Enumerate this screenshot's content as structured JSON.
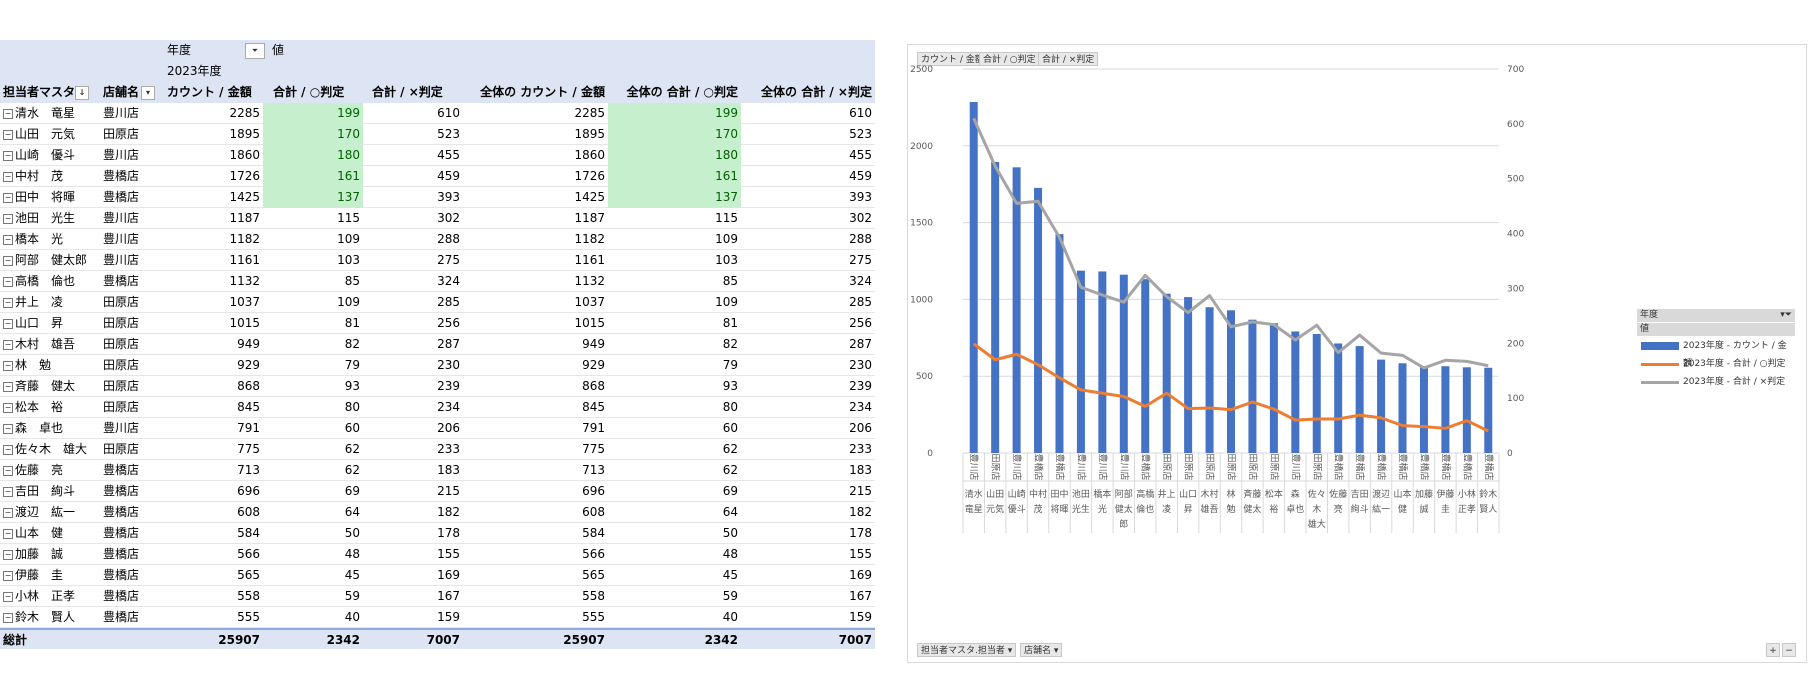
{
  "pivot": {
    "header": {
      "year_field": "年度",
      "values_label": "値",
      "year_value": "2023年度",
      "col_owner": "担当者マスタ",
      "col_owner_sort": "↓",
      "col_store": "店舗名",
      "col_count": "カウント / 金額",
      "col_ok": "合計 / ○判定",
      "col_ng": "合計 / ×判定",
      "col_total_count": "全体の カウント / 金額",
      "col_total_ok": "全体の 合計 / ○判定",
      "col_total_ng": "全体の 合計 / ×判定"
    },
    "rows": [
      {
        "name": "清水　竜星",
        "store": "豊川店",
        "count": 2285,
        "ok": 199,
        "ng": 610,
        "tcount": 2285,
        "tok": 199,
        "tng": 610
      },
      {
        "name": "山田　元気",
        "store": "田原店",
        "count": 1895,
        "ok": 170,
        "ng": 523,
        "tcount": 1895,
        "tok": 170,
        "tng": 523
      },
      {
        "name": "山崎　優斗",
        "store": "豊川店",
        "count": 1860,
        "ok": 180,
        "ng": 455,
        "tcount": 1860,
        "tok": 180,
        "tng": 455
      },
      {
        "name": "中村　茂",
        "store": "豊橋店",
        "count": 1726,
        "ok": 161,
        "ng": 459,
        "tcount": 1726,
        "tok": 161,
        "tng": 459
      },
      {
        "name": "田中　将暉",
        "store": "豊橋店",
        "count": 1425,
        "ok": 137,
        "ng": 393,
        "tcount": 1425,
        "tok": 137,
        "tng": 393
      },
      {
        "name": "池田　光生",
        "store": "豊川店",
        "count": 1187,
        "ok": 115,
        "ng": 302,
        "tcount": 1187,
        "tok": 115,
        "tng": 302
      },
      {
        "name": "橋本　光",
        "store": "豊川店",
        "count": 1182,
        "ok": 109,
        "ng": 288,
        "tcount": 1182,
        "tok": 109,
        "tng": 288
      },
      {
        "name": "阿部　健太郎",
        "store": "豊川店",
        "count": 1161,
        "ok": 103,
        "ng": 275,
        "tcount": 1161,
        "tok": 103,
        "tng": 275
      },
      {
        "name": "高橋　倫也",
        "store": "豊橋店",
        "count": 1132,
        "ok": 85,
        "ng": 324,
        "tcount": 1132,
        "tok": 85,
        "tng": 324
      },
      {
        "name": "井上　凌",
        "store": "田原店",
        "count": 1037,
        "ok": 109,
        "ng": 285,
        "tcount": 1037,
        "tok": 109,
        "tng": 285
      },
      {
        "name": "山口　昇",
        "store": "田原店",
        "count": 1015,
        "ok": 81,
        "ng": 256,
        "tcount": 1015,
        "tok": 81,
        "tng": 256
      },
      {
        "name": "木村　雄吾",
        "store": "田原店",
        "count": 949,
        "ok": 82,
        "ng": 287,
        "tcount": 949,
        "tok": 82,
        "tng": 287
      },
      {
        "name": "林　勉",
        "store": "田原店",
        "count": 929,
        "ok": 79,
        "ng": 230,
        "tcount": 929,
        "tok": 79,
        "tng": 230
      },
      {
        "name": "斉藤　健太",
        "store": "田原店",
        "count": 868,
        "ok": 93,
        "ng": 239,
        "tcount": 868,
        "tok": 93,
        "tng": 239
      },
      {
        "name": "松本　裕",
        "store": "田原店",
        "count": 845,
        "ok": 80,
        "ng": 234,
        "tcount": 845,
        "tok": 80,
        "tng": 234
      },
      {
        "name": "森　卓也",
        "store": "豊川店",
        "count": 791,
        "ok": 60,
        "ng": 206,
        "tcount": 791,
        "tok": 60,
        "tng": 206
      },
      {
        "name": "佐々木　雄大",
        "store": "田原店",
        "count": 775,
        "ok": 62,
        "ng": 233,
        "tcount": 775,
        "tok": 62,
        "tng": 233
      },
      {
        "name": "佐藤　亮",
        "store": "豊橋店",
        "count": 713,
        "ok": 62,
        "ng": 183,
        "tcount": 713,
        "tok": 62,
        "tng": 183
      },
      {
        "name": "吉田　絢斗",
        "store": "豊橋店",
        "count": 696,
        "ok": 69,
        "ng": 215,
        "tcount": 696,
        "tok": 69,
        "tng": 215
      },
      {
        "name": "渡辺　紘一",
        "store": "豊橋店",
        "count": 608,
        "ok": 64,
        "ng": 182,
        "tcount": 608,
        "tok": 64,
        "tng": 182
      },
      {
        "name": "山本　健",
        "store": "豊橋店",
        "count": 584,
        "ok": 50,
        "ng": 178,
        "tcount": 584,
        "tok": 50,
        "tng": 178
      },
      {
        "name": "加藤　誠",
        "store": "豊橋店",
        "count": 566,
        "ok": 48,
        "ng": 155,
        "tcount": 566,
        "tok": 48,
        "tng": 155
      },
      {
        "name": "伊藤　圭",
        "store": "豊橋店",
        "count": 565,
        "ok": 45,
        "ng": 169,
        "tcount": 565,
        "tok": 45,
        "tng": 169
      },
      {
        "name": "小林　正孝",
        "store": "豊橋店",
        "count": 558,
        "ok": 59,
        "ng": 167,
        "tcount": 558,
        "tok": 59,
        "tng": 167
      },
      {
        "name": "鈴木　賢人",
        "store": "豊橋店",
        "count": 555,
        "ok": 40,
        "ng": 159,
        "tcount": 555,
        "tok": 40,
        "tng": 159
      }
    ],
    "total": {
      "label": "総計",
      "count": 25907,
      "ok": 2342,
      "ng": 7007,
      "tcount": 25907,
      "tok": 2342,
      "tng": 7007
    },
    "highlight_color": "#c6efce",
    "highlight_text_color": "#006100",
    "highlight_top_n": 5
  },
  "chart": {
    "top_buttons": [
      "カウント / 金額",
      "合計 / ○判定",
      "合計 / ×判定"
    ],
    "bottom_buttons": [
      "担当者マスタ.担当者",
      "店舗名"
    ],
    "zoom_buttons": [
      "+",
      "−"
    ],
    "legend": {
      "field": "年度",
      "values_label": "値",
      "items": [
        "2023年度 - カウント / 金額",
        "2023年度 - 合計 / ○判定",
        "2023年度 - 合計 / ×判定"
      ]
    },
    "colors": {
      "bar": "#4472c4",
      "ok": "#ed7d31",
      "ng": "#a5a5a5",
      "grid": "#d9d9d9"
    }
  },
  "chart_data": {
    "type": "bar",
    "title": "",
    "categories_outer": [
      "清水 竜星",
      "山田 元気",
      "山崎 優斗",
      "中村 茂",
      "田中 将暉",
      "池田 光生",
      "橋本 光",
      "阿部 健太郎",
      "高橋 倫也",
      "井上 凌",
      "山口 昇",
      "木村 雄吾",
      "林 勉",
      "斉藤 健太",
      "松本 裕",
      "森 卓也",
      "佐々木 雄大",
      "佐藤 亮",
      "吉田 絢斗",
      "渡辺 紘一",
      "山本 健",
      "加藤 誠",
      "伊藤 圭",
      "小林 正孝",
      "鈴木 賢人"
    ],
    "categories_inner": [
      "豊川店",
      "田原店",
      "豊川店",
      "豊橋店",
      "豊橋店",
      "豊川店",
      "豊川店",
      "豊川店",
      "豊橋店",
      "田原店",
      "田原店",
      "田原店",
      "田原店",
      "田原店",
      "田原店",
      "豊川店",
      "田原店",
      "豊橋店",
      "豊橋店",
      "豊橋店",
      "豊橋店",
      "豊橋店",
      "豊橋店",
      "豊橋店",
      "豊橋店"
    ],
    "series": [
      {
        "name": "2023年度 - カウント / 金額",
        "type": "bar",
        "axis": "left",
        "values": [
          2285,
          1895,
          1860,
          1726,
          1425,
          1187,
          1182,
          1161,
          1132,
          1037,
          1015,
          949,
          929,
          868,
          845,
          791,
          775,
          713,
          696,
          608,
          584,
          566,
          565,
          558,
          555
        ]
      },
      {
        "name": "2023年度 - 合計 / ○判定",
        "type": "line",
        "axis": "right",
        "values": [
          199,
          170,
          180,
          161,
          137,
          115,
          109,
          103,
          85,
          109,
          81,
          82,
          79,
          93,
          80,
          60,
          62,
          62,
          69,
          64,
          50,
          48,
          45,
          59,
          40
        ]
      },
      {
        "name": "2023年度 - 合計 / ×判定",
        "type": "line",
        "axis": "right",
        "values": [
          610,
          523,
          455,
          459,
          393,
          302,
          288,
          275,
          324,
          285,
          256,
          287,
          230,
          239,
          234,
          206,
          233,
          183,
          215,
          182,
          178,
          155,
          169,
          167,
          159
        ]
      }
    ],
    "ylim_left": [
      0,
      2500
    ],
    "yticks_left": [
      0,
      500,
      1000,
      1500,
      2000,
      2500
    ],
    "ylim_right": [
      0,
      700
    ],
    "yticks_right": [
      0,
      100,
      200,
      300,
      400,
      500,
      600,
      700
    ],
    "grid": true,
    "legend_position": "right"
  }
}
